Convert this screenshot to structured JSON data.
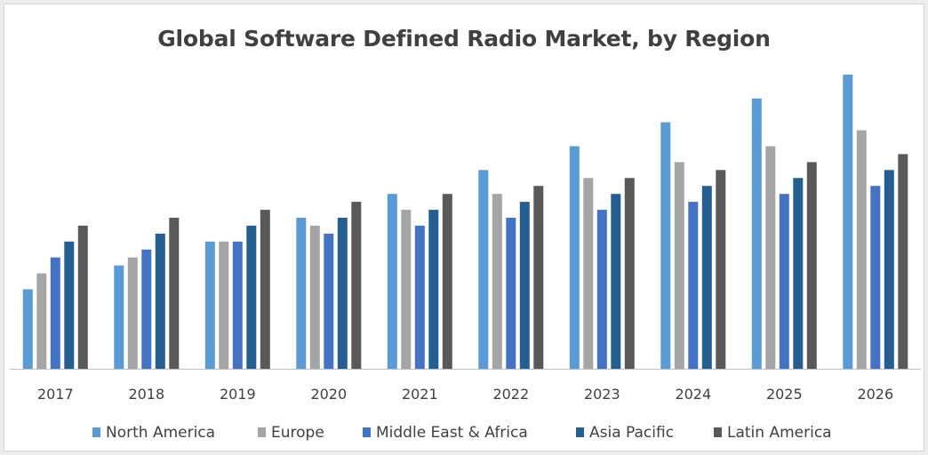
{
  "chart_data": {
    "type": "bar",
    "title": "Global Software Defined Radio Market, by Region",
    "xlabel": "",
    "ylabel": "",
    "categories": [
      "2017",
      "2018",
      "2019",
      "2020",
      "2021",
      "2022",
      "2023",
      "2024",
      "2025",
      "2026"
    ],
    "ylim": [
      0,
      38
    ],
    "grid": false,
    "legend": "bottom",
    "series": [
      {
        "name": "North America",
        "color": "#5b9bd5",
        "values": [
          10,
          13,
          16,
          19,
          22,
          25,
          28,
          31,
          34,
          37
        ]
      },
      {
        "name": "Europe",
        "color": "#a5a5a5",
        "values": [
          12,
          14,
          16,
          18,
          20,
          22,
          24,
          26,
          28,
          30
        ]
      },
      {
        "name": "Middle East & Africa",
        "color": "#4472c4",
        "values": [
          14,
          15,
          16,
          17,
          18,
          19,
          20,
          21,
          22,
          23
        ]
      },
      {
        "name": "Asia Pacific",
        "color": "#255e91",
        "values": [
          16,
          17,
          18,
          19,
          20,
          21,
          22,
          23,
          24,
          25
        ]
      },
      {
        "name": "Latin America",
        "color": "#595959",
        "values": [
          18,
          19,
          20,
          21,
          22,
          23,
          24,
          25,
          26,
          27
        ]
      }
    ]
  }
}
